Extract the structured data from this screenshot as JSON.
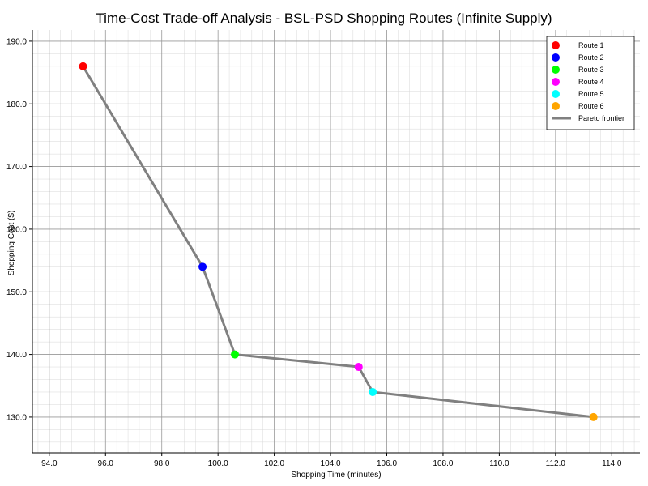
{
  "chart_data": {
    "type": "scatter",
    "title": "Time-Cost Trade-off Analysis - BSL-PSD Shopping Routes (Infinite Supply)",
    "xlabel": "Shopping Time (minutes)",
    "ylabel": "Shopping Cost ($)",
    "xlim": [
      93.4,
      115.0
    ],
    "ylim": [
      124.3,
      191.8
    ],
    "x_ticks": [
      94.0,
      96.0,
      98.0,
      100.0,
      102.0,
      104.0,
      106.0,
      108.0,
      110.0,
      112.0,
      114.0
    ],
    "y_ticks": [
      130.0,
      140.0,
      150.0,
      160.0,
      170.0,
      180.0,
      190.0
    ],
    "x_tick_labels": [
      "94.0",
      "96.0",
      "98.0",
      "100.0",
      "102.0",
      "104.0",
      "106.0",
      "108.0",
      "110.0",
      "112.0",
      "114.0"
    ],
    "y_tick_labels": [
      "130.0",
      "140.0",
      "150.0",
      "160.0",
      "170.0",
      "180.0",
      "190.0"
    ],
    "grid": true,
    "minor_grid": true,
    "legend_position": "top-right",
    "series": [
      {
        "name": "Route 1",
        "x": [
          95.2
        ],
        "y": [
          186.0
        ],
        "color": "#ff0000"
      },
      {
        "name": "Route 2",
        "x": [
          99.45
        ],
        "y": [
          154.0
        ],
        "color": "#0000ff"
      },
      {
        "name": "Route 3",
        "x": [
          100.6
        ],
        "y": [
          140.0
        ],
        "color": "#00ff00"
      },
      {
        "name": "Route 4",
        "x": [
          105.0
        ],
        "y": [
          138.0
        ],
        "color": "#ff00ff"
      },
      {
        "name": "Route 5",
        "x": [
          105.5
        ],
        "y": [
          134.0
        ],
        "color": "#00ffff"
      },
      {
        "name": "Route 6",
        "x": [
          113.35
        ],
        "y": [
          130.0
        ],
        "color": "#ffa500"
      }
    ],
    "frontier": {
      "name": "Pareto frontier",
      "x": [
        95.2,
        99.45,
        100.6,
        105.0,
        105.5,
        113.35
      ],
      "y": [
        186.0,
        154.0,
        140.0,
        138.0,
        134.0,
        130.0
      ],
      "color": "#808080"
    }
  }
}
